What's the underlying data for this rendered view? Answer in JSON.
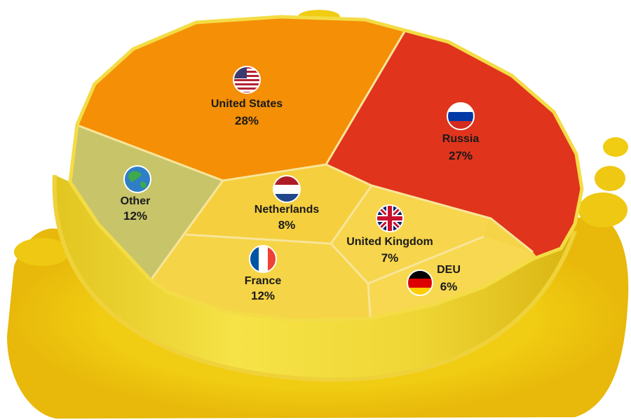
{
  "chart_data": {
    "type": "pie",
    "slices": [
      {
        "key": "us",
        "label": "United States",
        "value": 28,
        "value_label": "28%",
        "color": "#F48F06",
        "flag": "us-flag-icon"
      },
      {
        "key": "ru",
        "label": "Russia",
        "value": 27,
        "value_label": "27%",
        "color": "#E0341C",
        "flag": "russia-flag-icon"
      },
      {
        "key": "de",
        "label": "DEU",
        "value": 6,
        "value_label": "6%",
        "color": "#F6D447",
        "flag": "germany-flag-icon"
      },
      {
        "key": "uk",
        "label": "United Kingdom",
        "value": 7,
        "value_label": "7%",
        "color": "#F6D447",
        "flag": "uk-flag-icon"
      },
      {
        "key": "nl",
        "label": "Netherlands",
        "value": 8,
        "value_label": "8%",
        "color": "#F6D447",
        "flag": "netherlands-flag-icon"
      },
      {
        "key": "fr",
        "label": "France",
        "value": 12,
        "value_label": "12%",
        "color": "#F6D447",
        "flag": "france-flag-icon"
      },
      {
        "key": "ot",
        "label": "Other",
        "value": 12,
        "value_label": "12%",
        "color": "#C8C46A",
        "flag": "globe-icon"
      }
    ]
  }
}
